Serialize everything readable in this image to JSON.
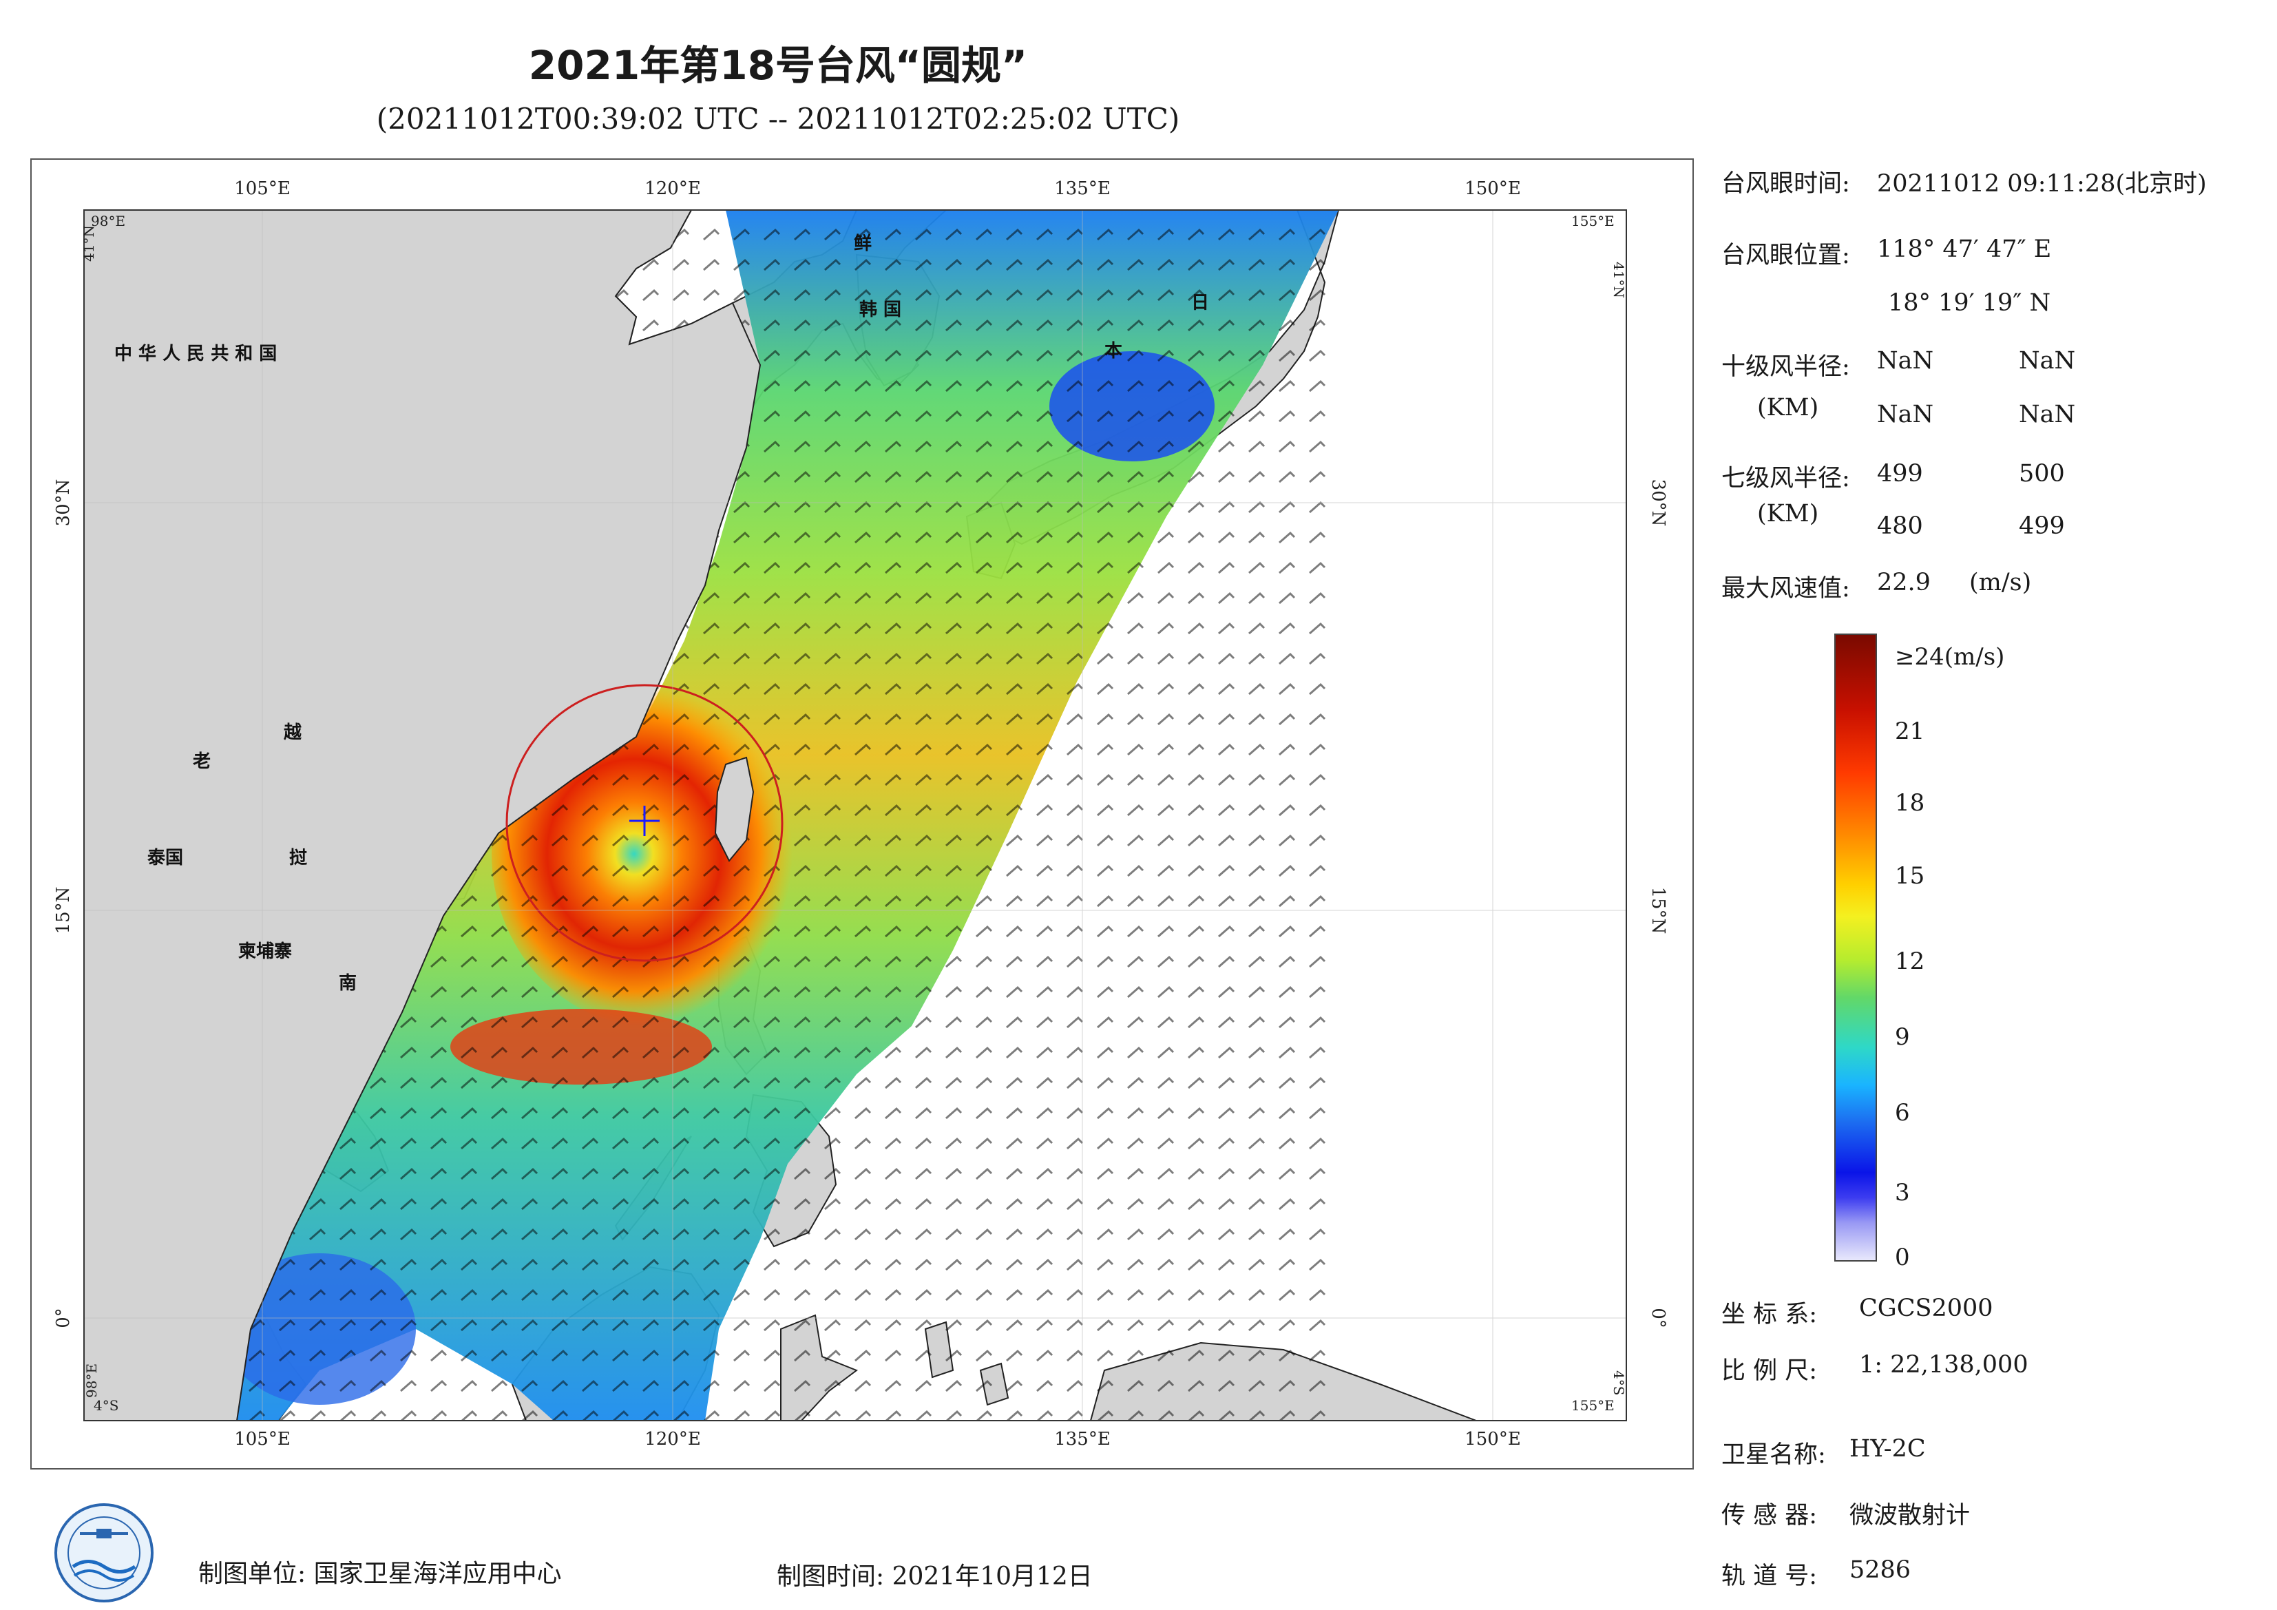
{
  "header": {
    "title": "2021年第18号台风“圆规”",
    "subtitle": "(20211012T00:39:02 UTC -- 20211012T02:25:02 UTC)"
  },
  "map": {
    "lon_ticks": [
      "105°E",
      "120°E",
      "135°E",
      "150°E"
    ],
    "lat_ticks": [
      "30°N",
      "15°N",
      "0°"
    ],
    "corners": {
      "top_left_lon": "98°E",
      "top_left_lat": "41°N",
      "top_right_lon": "155°E",
      "top_right_lat": "41°N",
      "bottom_left_lon": "98°E",
      "bottom_left_lat": "4°S",
      "bottom_right_lon": "155°E",
      "bottom_right_lat": "4°S"
    },
    "place_labels": {
      "china": "中 华 人 民 共 和 国",
      "laos": "老",
      "vietnam_1": "越",
      "vietnam_2": "南",
      "thailand": "泰国",
      "cambodia": "柬埔寨",
      "myanmar_piece": "挝",
      "korea_1": "鲜",
      "korea_2": "韩 国",
      "japan_1": "日",
      "japan_2": "本"
    },
    "colors": {
      "land": "#d3d3d3",
      "ocean": "#ffffff",
      "typhoon_circle": "#cc1f1f"
    }
  },
  "info": {
    "eye_time_label": "台风眼时间:",
    "eye_time_value": "20211012 09:11:28(北京时)",
    "eye_pos_label": "台风眼位置:",
    "eye_lon": "118° 47′ 47″ E",
    "eye_lat": "18° 19′ 19″ N",
    "r10_label": "十级风半径:",
    "r10_unit": "(KM)",
    "r10_values": [
      "NaN",
      "NaN",
      "NaN",
      "NaN"
    ],
    "r7_label": "七级风半径:",
    "r7_unit": "(KM)",
    "r7_values": [
      "499",
      "500",
      "480",
      "499"
    ],
    "max_wind_label": "最大风速值:",
    "max_wind_value": "22.9",
    "max_wind_unit": "(m/s)"
  },
  "colorbar": {
    "labels": [
      "≥24(m/s)",
      "21",
      "18",
      "15",
      "12",
      "9",
      "6",
      "3",
      "0"
    ]
  },
  "meta": {
    "crs_label": "坐 标 系:",
    "crs_value": "CGCS2000",
    "scale_label": "比 例 尺:",
    "scale_value": "1: 22,138,000",
    "satellite_label": "卫星名称:",
    "satellite_value": "HY-2C",
    "sensor_label": "传 感 器:",
    "sensor_value": "微波散射计",
    "orbit_label": "轨 道 号:",
    "orbit_value": "5286"
  },
  "footer": {
    "producer": "制图单位: 国家卫星海洋应用中心",
    "date": "制图时间: 2021年10月12日"
  }
}
